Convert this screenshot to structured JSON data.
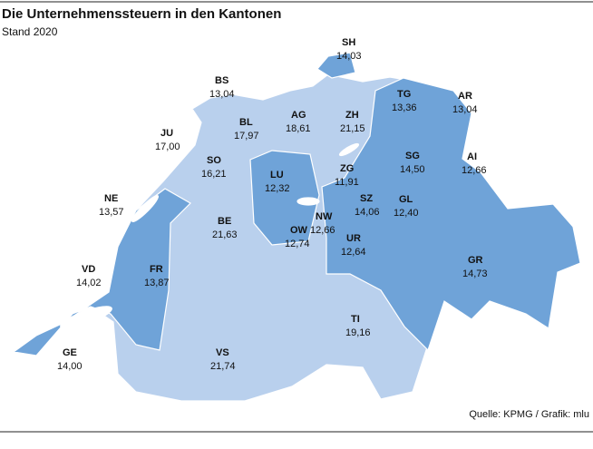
{
  "header": {
    "title": "Die Unternehmenssteuern in den Kantonen",
    "subtitle": "Stand 2020"
  },
  "cantons": [
    {
      "code": "SH",
      "value": "14,03"
    },
    {
      "code": "BS",
      "value": "13,04"
    },
    {
      "code": "JU",
      "value": "17,00"
    },
    {
      "code": "BL",
      "value": "17,97"
    },
    {
      "code": "AG",
      "value": "18,61"
    },
    {
      "code": "ZH",
      "value": "21,15"
    },
    {
      "code": "TG",
      "value": "13,36"
    },
    {
      "code": "AR",
      "value": "13,04"
    },
    {
      "code": "SG",
      "value": "14,50"
    },
    {
      "code": "AI",
      "value": "12,66"
    },
    {
      "code": "SO",
      "value": "16,21"
    },
    {
      "code": "LU",
      "value": "12,32"
    },
    {
      "code": "ZG",
      "value": "11,91"
    },
    {
      "code": "NE",
      "value": "13,57"
    },
    {
      "code": "SZ",
      "value": "14,06"
    },
    {
      "code": "GL",
      "value": "12,40"
    },
    {
      "code": "BE",
      "value": "21,63"
    },
    {
      "code": "NW",
      "value": "12,66"
    },
    {
      "code": "OW",
      "value": "12,74"
    },
    {
      "code": "UR",
      "value": "12,64"
    },
    {
      "code": "VD",
      "value": "14,02"
    },
    {
      "code": "FR",
      "value": "13,87"
    },
    {
      "code": "GR",
      "value": "14,73"
    },
    {
      "code": "TI",
      "value": "19,16"
    },
    {
      "code": "GE",
      "value": "14,00"
    },
    {
      "code": "VS",
      "value": "21,74"
    }
  ],
  "source": "Quelle: KPMG / Grafik: mlu"
}
